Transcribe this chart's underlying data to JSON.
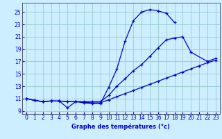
{
  "title": "Graphe des températures (°c)",
  "bg_color": "#cceeff",
  "grid_color": "#99cccc",
  "line_color": "#0000cc",
  "line1": {
    "x": [
      0,
      1,
      2,
      3,
      4,
      5,
      6,
      7,
      8,
      9,
      10,
      11,
      12,
      13,
      14,
      15,
      16,
      17,
      18
    ],
    "y": [
      11.0,
      10.7,
      10.5,
      10.6,
      10.6,
      9.5,
      10.5,
      10.3,
      10.2,
      10.2,
      12.8,
      15.8,
      20.3,
      23.6,
      25.0,
      25.4,
      25.2,
      24.8,
      23.3
    ]
  },
  "line2": {
    "x": [
      0,
      1,
      2,
      3,
      4,
      5,
      6,
      7,
      8,
      9,
      10,
      11,
      12,
      13,
      14,
      15,
      16,
      17,
      18,
      19,
      20,
      22,
      23
    ],
    "y": [
      11.0,
      10.7,
      10.5,
      10.6,
      10.6,
      10.5,
      10.5,
      10.5,
      10.5,
      10.5,
      11.5,
      13.0,
      14.2,
      15.5,
      16.5,
      17.8,
      19.2,
      20.5,
      20.8,
      21.0,
      18.5,
      17.0,
      17.5
    ]
  },
  "line3": {
    "x": [
      0,
      1,
      2,
      3,
      4,
      5,
      6,
      7,
      8,
      9,
      10,
      11,
      12,
      13,
      14,
      15,
      16,
      17,
      18,
      19,
      20,
      21,
      22,
      23
    ],
    "y": [
      11.0,
      10.7,
      10.5,
      10.6,
      10.6,
      10.5,
      10.5,
      10.4,
      10.3,
      10.3,
      10.8,
      11.3,
      11.8,
      12.3,
      12.8,
      13.3,
      13.8,
      14.3,
      14.8,
      15.3,
      15.8,
      16.3,
      16.8,
      17.2
    ]
  },
  "xlim": [
    -0.5,
    23.5
  ],
  "ylim": [
    8.5,
    26.5
  ],
  "yticks": [
    9,
    11,
    13,
    15,
    17,
    19,
    21,
    23,
    25
  ],
  "xticks": [
    0,
    1,
    2,
    3,
    4,
    5,
    6,
    7,
    8,
    9,
    10,
    11,
    12,
    13,
    14,
    15,
    16,
    17,
    18,
    19,
    20,
    21,
    22,
    23
  ]
}
